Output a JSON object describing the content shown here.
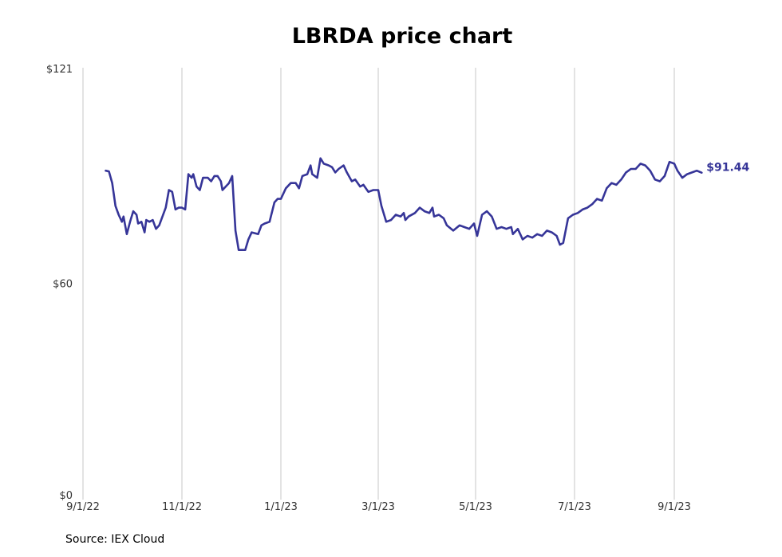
{
  "chart_data": {
    "type": "line",
    "title": "LBRDA price chart",
    "source": "Source: IEX Cloud",
    "x_ticks": [
      "9/1/22",
      "11/1/22",
      "1/1/23",
      "3/1/23",
      "5/1/23",
      "7/1/23",
      "9/1/23"
    ],
    "y_ticks": [
      "$0",
      "$60",
      "$121"
    ],
    "ylim": [
      0,
      121
    ],
    "xlim": [
      "2022-09-01",
      "2023-10-01"
    ],
    "grid": "vertical",
    "line_color": "#363598",
    "last_value_label": "$91.44",
    "series": [
      {
        "points": [
          [
            "2022-09-15",
            92.0
          ],
          [
            "2022-09-17",
            91.8
          ],
          [
            "2022-09-19",
            88.5
          ],
          [
            "2022-09-21",
            82.0
          ],
          [
            "2022-09-23",
            79.5
          ],
          [
            "2022-09-25",
            77.5
          ],
          [
            "2022-09-26",
            79.0
          ],
          [
            "2022-09-28",
            74.0
          ],
          [
            "2022-09-30",
            77.5
          ],
          [
            "2022-10-02",
            80.5
          ],
          [
            "2022-10-04",
            79.5
          ],
          [
            "2022-10-05",
            77.0
          ],
          [
            "2022-10-07",
            77.5
          ],
          [
            "2022-10-09",
            74.5
          ],
          [
            "2022-10-10",
            78.0
          ],
          [
            "2022-10-12",
            77.5
          ],
          [
            "2022-10-14",
            78.0
          ],
          [
            "2022-10-16",
            75.5
          ],
          [
            "2022-10-18",
            76.5
          ],
          [
            "2022-10-20",
            79.0
          ],
          [
            "2022-10-22",
            81.5
          ],
          [
            "2022-10-24",
            86.5
          ],
          [
            "2022-10-26",
            86.0
          ],
          [
            "2022-10-28",
            81.0
          ],
          [
            "2022-10-30",
            81.5
          ],
          [
            "2022-11-01",
            81.5
          ],
          [
            "2022-11-03",
            81.0
          ],
          [
            "2022-11-05",
            91.0
          ],
          [
            "2022-11-07",
            90.0
          ],
          [
            "2022-11-08",
            91.0
          ],
          [
            "2022-11-10",
            87.5
          ],
          [
            "2022-11-12",
            86.5
          ],
          [
            "2022-11-14",
            90.0
          ],
          [
            "2022-11-17",
            90.0
          ],
          [
            "2022-11-19",
            89.0
          ],
          [
            "2022-11-21",
            90.5
          ],
          [
            "2022-11-23",
            90.5
          ],
          [
            "2022-11-25",
            89.0
          ],
          [
            "2022-11-26",
            86.5
          ],
          [
            "2022-11-28",
            87.5
          ],
          [
            "2022-11-30",
            88.5
          ],
          [
            "2022-12-02",
            90.5
          ],
          [
            "2022-12-04",
            75.0
          ],
          [
            "2022-12-06",
            69.5
          ],
          [
            "2022-12-10",
            69.5
          ],
          [
            "2022-12-12",
            72.5
          ],
          [
            "2022-12-14",
            74.5
          ],
          [
            "2022-12-18",
            74.0
          ],
          [
            "2022-12-20",
            76.5
          ],
          [
            "2022-12-22",
            77.0
          ],
          [
            "2022-12-25",
            77.5
          ],
          [
            "2022-12-28",
            83.0
          ],
          [
            "2022-12-30",
            84.0
          ],
          [
            "2023-01-01",
            84.0
          ],
          [
            "2023-01-04",
            87.0
          ],
          [
            "2023-01-07",
            88.5
          ],
          [
            "2023-01-10",
            88.5
          ],
          [
            "2023-01-12",
            87.0
          ],
          [
            "2023-01-14",
            90.5
          ],
          [
            "2023-01-17",
            91.0
          ],
          [
            "2023-01-19",
            93.5
          ],
          [
            "2023-01-20",
            91.0
          ],
          [
            "2023-01-23",
            90.0
          ],
          [
            "2023-01-25",
            95.5
          ],
          [
            "2023-01-27",
            94.0
          ],
          [
            "2023-01-30",
            93.5
          ],
          [
            "2023-02-01",
            93.0
          ],
          [
            "2023-02-03",
            91.5
          ],
          [
            "2023-02-05",
            92.5
          ],
          [
            "2023-02-08",
            93.5
          ],
          [
            "2023-02-10",
            91.5
          ],
          [
            "2023-02-13",
            89.0
          ],
          [
            "2023-02-15",
            89.5
          ],
          [
            "2023-02-18",
            87.5
          ],
          [
            "2023-02-20",
            88.0
          ],
          [
            "2023-02-23",
            86.0
          ],
          [
            "2023-02-26",
            86.5
          ],
          [
            "2023-03-01",
            86.5
          ],
          [
            "2023-03-03",
            82.0
          ],
          [
            "2023-03-06",
            77.5
          ],
          [
            "2023-03-09",
            78.0
          ],
          [
            "2023-03-12",
            79.5
          ],
          [
            "2023-03-15",
            79.0
          ],
          [
            "2023-03-17",
            80.0
          ],
          [
            "2023-03-18",
            78.0
          ],
          [
            "2023-03-20",
            79.0
          ],
          [
            "2023-03-24",
            80.0
          ],
          [
            "2023-03-27",
            81.5
          ],
          [
            "2023-03-30",
            80.5
          ],
          [
            "2023-04-02",
            80.0
          ],
          [
            "2023-04-04",
            81.5
          ],
          [
            "2023-04-05",
            79.0
          ],
          [
            "2023-04-08",
            79.5
          ],
          [
            "2023-04-11",
            78.5
          ],
          [
            "2023-04-13",
            76.5
          ],
          [
            "2023-04-17",
            75.0
          ],
          [
            "2023-04-21",
            76.5
          ],
          [
            "2023-04-24",
            76.0
          ],
          [
            "2023-04-27",
            75.5
          ],
          [
            "2023-04-30",
            77.0
          ],
          [
            "2023-05-02",
            73.5
          ],
          [
            "2023-05-05",
            79.5
          ],
          [
            "2023-05-08",
            80.5
          ],
          [
            "2023-05-11",
            79.0
          ],
          [
            "2023-05-14",
            75.5
          ],
          [
            "2023-05-17",
            76.0
          ],
          [
            "2023-05-20",
            75.5
          ],
          [
            "2023-05-23",
            76.0
          ],
          [
            "2023-05-24",
            74.0
          ],
          [
            "2023-05-27",
            75.5
          ],
          [
            "2023-05-30",
            72.5
          ],
          [
            "2023-06-02",
            73.5
          ],
          [
            "2023-06-05",
            73.0
          ],
          [
            "2023-06-08",
            74.0
          ],
          [
            "2023-06-11",
            73.5
          ],
          [
            "2023-06-14",
            75.0
          ],
          [
            "2023-06-17",
            74.5
          ],
          [
            "2023-06-20",
            73.5
          ],
          [
            "2023-06-22",
            71.0
          ],
          [
            "2023-06-24",
            71.5
          ],
          [
            "2023-06-27",
            78.5
          ],
          [
            "2023-06-30",
            79.5
          ],
          [
            "2023-07-03",
            80.0
          ],
          [
            "2023-07-06",
            81.0
          ],
          [
            "2023-07-09",
            81.5
          ],
          [
            "2023-07-12",
            82.5
          ],
          [
            "2023-07-15",
            84.0
          ],
          [
            "2023-07-18",
            83.5
          ],
          [
            "2023-07-21",
            87.0
          ],
          [
            "2023-07-24",
            88.5
          ],
          [
            "2023-07-27",
            88.0
          ],
          [
            "2023-07-30",
            89.5
          ],
          [
            "2023-08-02",
            91.5
          ],
          [
            "2023-08-05",
            92.5
          ],
          [
            "2023-08-08",
            92.5
          ],
          [
            "2023-08-11",
            94.0
          ],
          [
            "2023-08-14",
            93.5
          ],
          [
            "2023-08-17",
            92.0
          ],
          [
            "2023-08-20",
            89.5
          ],
          [
            "2023-08-23",
            89.0
          ],
          [
            "2023-08-26",
            90.5
          ],
          [
            "2023-08-29",
            94.5
          ],
          [
            "2023-09-01",
            94.0
          ],
          [
            "2023-09-03",
            92.0
          ],
          [
            "2023-09-06",
            90.0
          ],
          [
            "2023-09-09",
            91.0
          ],
          [
            "2023-09-12",
            91.5
          ],
          [
            "2023-09-15",
            92.0
          ],
          [
            "2023-09-18",
            91.44
          ]
        ]
      }
    ]
  }
}
